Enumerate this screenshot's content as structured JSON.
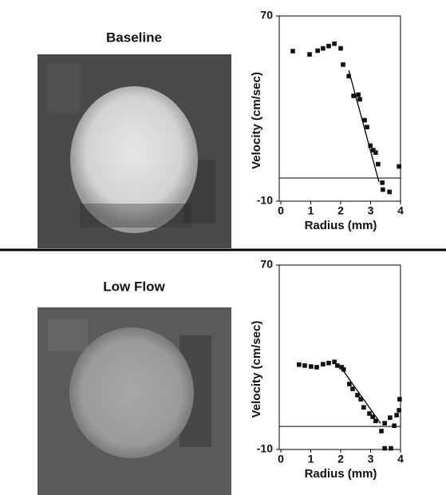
{
  "chart_data": [
    {
      "type": "scatter",
      "title": "Baseline",
      "xlabel": "Radius (mm)",
      "ylabel": "Velocity (cm/sec)",
      "color": "#111111",
      "x": [
        0.4,
        0.96,
        1.23,
        1.41,
        1.6,
        1.79,
        2.0,
        2.08,
        2.27,
        2.43,
        2.59,
        2.64,
        2.8,
        2.88,
        2.99,
        3.09,
        3.17,
        3.25,
        3.39,
        3.41,
        3.63,
        3.95
      ],
      "y": [
        54.8,
        53.4,
        55,
        56,
        57,
        58,
        56,
        49,
        44,
        35.5,
        36,
        34,
        25,
        22,
        14,
        12,
        11,
        6,
        -2,
        -5,
        -6,
        5
      ],
      "fit_line": {
        "x": [
          2.27,
          3.28
        ],
        "y": [
          46.5,
          -1.7
        ]
      },
      "hline": 0,
      "xlim": [
        0,
        4
      ],
      "ylim": [
        -10,
        70
      ],
      "xticks": [
        0,
        1,
        2,
        3,
        4
      ],
      "yticks": [
        -10,
        70
      ]
    },
    {
      "type": "scatter",
      "title": "Low Flow",
      "xlabel": "Radius (mm)",
      "ylabel": "Velocity (cm/sec)",
      "color": "#111111",
      "x": [
        0.61,
        0.8,
        1.01,
        1.2,
        1.41,
        1.6,
        1.79,
        1.89,
        2.03,
        2.1,
        2.29,
        2.4,
        2.56,
        2.67,
        2.77,
        2.96,
        3.07,
        3.17,
        3.36,
        3.47,
        3.65,
        3.79,
        3.87,
        3.95,
        3.97,
        3.47,
        3.68
      ],
      "y": [
        26.8,
        26.4,
        26,
        25.7,
        27,
        27.5,
        28,
        26.4,
        25.7,
        24.7,
        18.4,
        16.3,
        13.6,
        11.8,
        8.3,
        5.6,
        4.2,
        2.4,
        -2,
        1.4,
        3.8,
        0.3,
        4.9,
        7,
        11.8,
        -9.5,
        -9.5
      ],
      "fit_line": {
        "x": [
          2.08,
          3.33
        ],
        "y": [
          24.3,
          1.4
        ]
      },
      "hline": 0,
      "xlim": [
        0,
        4
      ],
      "ylim": [
        -10,
        70
      ],
      "xticks": [
        0,
        1,
        2,
        3,
        4
      ],
      "yticks": [
        -10,
        70
      ]
    }
  ]
}
